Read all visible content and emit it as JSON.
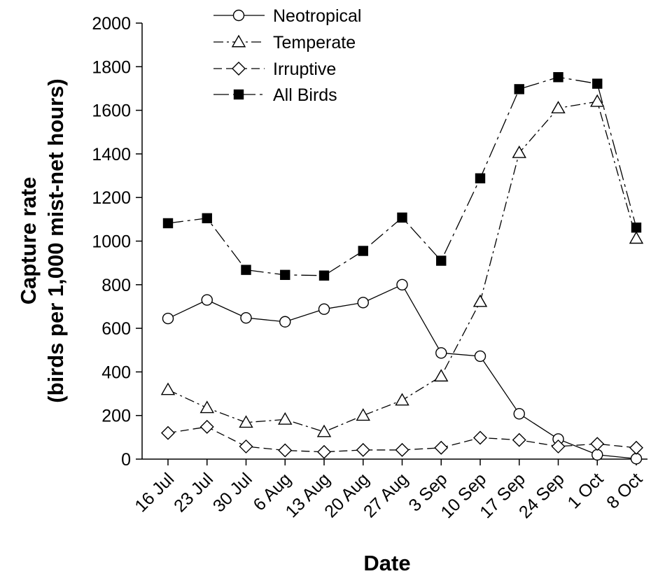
{
  "chart_data": {
    "type": "line",
    "xlabel": "Date",
    "ylabel_lines": [
      "Capture rate",
      "(birds per 1,000 mist-net hours)"
    ],
    "ylim": [
      0,
      2000
    ],
    "yticks": [
      0,
      200,
      400,
      600,
      800,
      1000,
      1200,
      1400,
      1600,
      1800,
      2000
    ],
    "ytick_labels": [
      "0",
      "200",
      "400",
      "600",
      "800",
      "1000",
      "1200",
      "1400",
      "1600",
      "1800",
      "2000"
    ],
    "categories": [
      "16 Jul",
      "23 Jul",
      "30 Jul",
      "6 Aug",
      "13 Aug",
      "20 Aug",
      "27 Aug",
      "3 Sep",
      "10 Sep",
      "17 Sep",
      "24 Sep",
      "1 Oct",
      "8 Oct"
    ],
    "grid": false,
    "legend_position": "top-center",
    "series": [
      {
        "name": "Neotropical",
        "marker": "circle-open",
        "line_style": "solid",
        "values": [
          645,
          730,
          648,
          630,
          688,
          718,
          800,
          487,
          472,
          208,
          92,
          20,
          2
        ]
      },
      {
        "name": "Temperate",
        "marker": "triangle-open",
        "line_style": "dash-dot",
        "values": [
          318,
          235,
          168,
          182,
          125,
          200,
          270,
          380,
          722,
          1405,
          1610,
          1640,
          1012
        ]
      },
      {
        "name": "Irruptive",
        "marker": "diamond-open",
        "line_style": "dashed",
        "values": [
          120,
          148,
          58,
          40,
          33,
          42,
          42,
          52,
          98,
          88,
          58,
          70,
          52
        ]
      },
      {
        "name": "All Birds",
        "marker": "square-filled",
        "line_style": "long-dash-dot",
        "values": [
          1082,
          1105,
          868,
          845,
          842,
          955,
          1108,
          910,
          1288,
          1697,
          1752,
          1722,
          1062
        ]
      }
    ]
  }
}
